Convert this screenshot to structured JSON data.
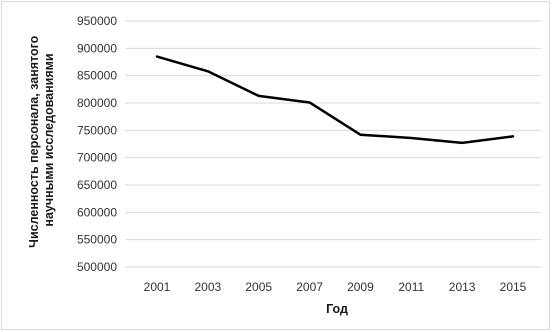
{
  "chart_data": {
    "type": "line",
    "title": "",
    "xlabel": "Год",
    "ylabel_lines": [
      "Численность персонала, занятого",
      "научными исследованиями"
    ],
    "x": [
      2001,
      2003,
      2005,
      2007,
      2009,
      2011,
      2013,
      2015
    ],
    "x_tick_labels": [
      "2001",
      "2003",
      "2005",
      "2007",
      "2009",
      "2011",
      "2013",
      "2015"
    ],
    "series": [
      {
        "values": [
          885000,
          858000,
          813000,
          801000,
          742000,
          736000,
          727000,
          739000
        ]
      }
    ],
    "ylim": [
      500000,
      950000
    ],
    "y_ticks": [
      500000,
      550000,
      600000,
      650000,
      700000,
      750000,
      800000,
      850000,
      900000,
      950000
    ],
    "y_tick_labels": [
      "500000",
      "550000",
      "600000",
      "650000",
      "700000",
      "750000",
      "800000",
      "850000",
      "900000",
      "950000"
    ],
    "grid": true,
    "legend": "none",
    "line_color": "#000000",
    "grid_color": "#d9d9d9"
  }
}
